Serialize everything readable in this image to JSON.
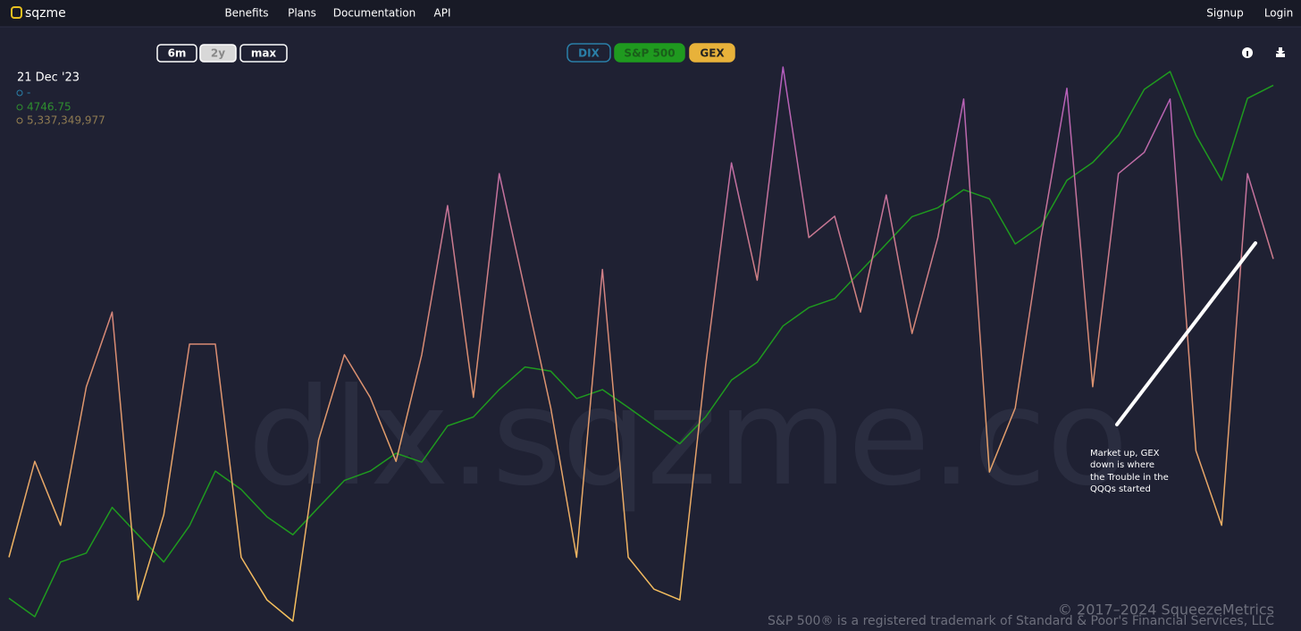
{
  "nav": {
    "brand": "sqzme",
    "links": [
      "Benefits",
      "Plans",
      "Documentation",
      "API"
    ],
    "account": [
      "Signup",
      "Login"
    ]
  },
  "ranges": {
    "options": [
      "6m",
      "2y",
      "max"
    ],
    "active": "2y"
  },
  "readout": {
    "date": "21 Dec '23",
    "dix": "-",
    "spx": "4746.75",
    "gex": "5,337,349,977"
  },
  "watermark": "dlx.sqzme.co",
  "annotation": [
    "Market up, GEX",
    "down is where",
    "the Trouble in the",
    "QQQs started"
  ],
  "footer": {
    "copyright": "© 2017–2024 SqueezeMetrics",
    "trademark": "S&P 500® is a registered trademark of Standard & Poor's Financial Services, LLC"
  },
  "chart_data": {
    "type": "line",
    "inactive_series": {
      "name": "DIX",
      "color": "#2a7fa8"
    },
    "series": [
      {
        "name": "S&P 500",
        "color": "#1f9a1f",
        "values": [
          3658,
          3619,
          3735,
          3754,
          3851,
          3793,
          3735,
          3812,
          3928,
          3889,
          3831,
          3793,
          3851,
          3908,
          3928,
          3966,
          3947,
          4024,
          4043,
          4101,
          4149,
          4140,
          4082,
          4101,
          4063,
          4024,
          3986,
          4043,
          4121,
          4159,
          4236,
          4275,
          4294,
          4352,
          4410,
          4468,
          4487,
          4525,
          4506,
          4410,
          4448,
          4545,
          4583,
          4641,
          4738,
          4776,
          4641,
          4545,
          4719,
          4746.75
        ]
      },
      {
        "name": "GEX",
        "color": "#e8b23a",
        "colors": [
          "#f7c35c",
          "#d98b73",
          "#b35cc0"
        ],
        "values": [
          381000000,
          1974000000,
          912000000,
          3213000000,
          4452000000,
          -327000000,
          1089000000,
          3921000000,
          3921000000,
          381000000,
          -327000000,
          -681000000,
          2328000000,
          3744000000,
          3036000000,
          1974000000,
          3744000000,
          6222000000,
          3036000000,
          6753000000,
          4806000000,
          2859000000,
          381000000,
          5160000000,
          381000000,
          -150000000,
          -327000000,
          3567000000,
          6930000000,
          4983000000,
          8523000000,
          5691000000,
          6045000000,
          4452000000,
          6399000000,
          4098000000,
          5691000000,
          7992000000,
          1797000000,
          2859000000,
          5691000000,
          8169000000,
          3213000000,
          6753000000,
          7107000000,
          7992000000,
          2151000000,
          912000000,
          6753000000,
          5337349977
        ]
      }
    ]
  }
}
